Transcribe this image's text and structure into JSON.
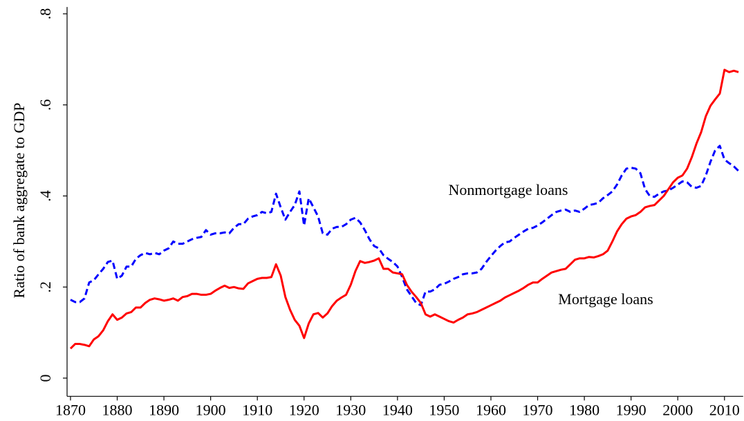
{
  "chart_data": {
    "type": "line",
    "ylabel": "Ratio of bank aggregate to GDP",
    "x": [
      1870,
      1871,
      1872,
      1873,
      1874,
      1875,
      1876,
      1877,
      1878,
      1879,
      1880,
      1881,
      1882,
      1883,
      1884,
      1885,
      1886,
      1887,
      1888,
      1889,
      1890,
      1891,
      1892,
      1893,
      1894,
      1895,
      1896,
      1897,
      1898,
      1899,
      1900,
      1901,
      1902,
      1903,
      1904,
      1905,
      1906,
      1907,
      1908,
      1909,
      1910,
      1911,
      1912,
      1913,
      1914,
      1915,
      1916,
      1917,
      1918,
      1919,
      1920,
      1921,
      1922,
      1923,
      1924,
      1925,
      1926,
      1927,
      1928,
      1929,
      1930,
      1931,
      1932,
      1933,
      1934,
      1935,
      1936,
      1937,
      1938,
      1939,
      1940,
      1941,
      1942,
      1943,
      1944,
      1945,
      1946,
      1947,
      1948,
      1949,
      1950,
      1951,
      1952,
      1953,
      1954,
      1955,
      1956,
      1957,
      1958,
      1959,
      1960,
      1961,
      1962,
      1963,
      1964,
      1965,
      1966,
      1967,
      1968,
      1969,
      1970,
      1971,
      1972,
      1973,
      1974,
      1975,
      1976,
      1977,
      1978,
      1979,
      1980,
      1981,
      1982,
      1983,
      1984,
      1985,
      1986,
      1987,
      1988,
      1989,
      1990,
      1991,
      1992,
      1993,
      1994,
      1995,
      1996,
      1997,
      1998,
      1999,
      2000,
      2001,
      2002,
      2003,
      2004,
      2005,
      2006,
      2007,
      2008,
      2009,
      2010,
      2011,
      2012,
      2013
    ],
    "series": [
      {
        "name": "Nonmortgage loans",
        "color": "#0000ff",
        "dash": true,
        "values": [
          0.172,
          0.167,
          0.167,
          0.175,
          0.21,
          0.215,
          0.228,
          0.24,
          0.255,
          0.258,
          0.218,
          0.225,
          0.245,
          0.245,
          0.262,
          0.27,
          0.275,
          0.272,
          0.275,
          0.272,
          0.28,
          0.285,
          0.3,
          0.295,
          0.295,
          0.3,
          0.305,
          0.308,
          0.31,
          0.325,
          0.315,
          0.318,
          0.318,
          0.32,
          0.318,
          0.33,
          0.338,
          0.338,
          0.35,
          0.355,
          0.358,
          0.365,
          0.362,
          0.365,
          0.405,
          0.375,
          0.348,
          0.365,
          0.38,
          0.41,
          0.335,
          0.395,
          0.375,
          0.355,
          0.318,
          0.315,
          0.328,
          0.332,
          0.332,
          0.338,
          0.348,
          0.352,
          0.342,
          0.325,
          0.305,
          0.29,
          0.285,
          0.27,
          0.262,
          0.255,
          0.245,
          0.222,
          0.195,
          0.18,
          0.165,
          0.16,
          0.19,
          0.19,
          0.195,
          0.205,
          0.207,
          0.212,
          0.218,
          0.222,
          0.228,
          0.23,
          0.23,
          0.232,
          0.24,
          0.255,
          0.268,
          0.28,
          0.29,
          0.298,
          0.3,
          0.308,
          0.315,
          0.322,
          0.328,
          0.33,
          0.335,
          0.342,
          0.35,
          0.358,
          0.365,
          0.368,
          0.37,
          0.365,
          0.368,
          0.365,
          0.372,
          0.38,
          0.382,
          0.385,
          0.395,
          0.402,
          0.41,
          0.425,
          0.445,
          0.46,
          0.462,
          0.46,
          0.45,
          0.415,
          0.4,
          0.398,
          0.405,
          0.41,
          0.412,
          0.418,
          0.425,
          0.432,
          0.43,
          0.42,
          0.418,
          0.422,
          0.445,
          0.475,
          0.5,
          0.51,
          0.48,
          0.472,
          0.465,
          0.455
        ]
      },
      {
        "name": "Mortgage loans",
        "color": "#ff0000",
        "dash": false,
        "values": [
          0.065,
          0.075,
          0.075,
          0.073,
          0.07,
          0.085,
          0.092,
          0.105,
          0.125,
          0.14,
          0.128,
          0.133,
          0.142,
          0.145,
          0.155,
          0.155,
          0.165,
          0.172,
          0.175,
          0.173,
          0.17,
          0.172,
          0.175,
          0.17,
          0.178,
          0.18,
          0.185,
          0.185,
          0.183,
          0.183,
          0.185,
          0.192,
          0.198,
          0.203,
          0.198,
          0.2,
          0.197,
          0.196,
          0.208,
          0.213,
          0.218,
          0.22,
          0.22,
          0.222,
          0.25,
          0.225,
          0.178,
          0.15,
          0.128,
          0.115,
          0.088,
          0.12,
          0.14,
          0.143,
          0.133,
          0.142,
          0.158,
          0.17,
          0.177,
          0.183,
          0.205,
          0.235,
          0.257,
          0.253,
          0.255,
          0.258,
          0.263,
          0.24,
          0.24,
          0.232,
          0.23,
          0.228,
          0.205,
          0.19,
          0.178,
          0.165,
          0.14,
          0.135,
          0.14,
          0.135,
          0.13,
          0.125,
          0.122,
          0.128,
          0.133,
          0.14,
          0.142,
          0.145,
          0.15,
          0.155,
          0.16,
          0.165,
          0.17,
          0.177,
          0.182,
          0.187,
          0.192,
          0.198,
          0.205,
          0.21,
          0.21,
          0.218,
          0.225,
          0.232,
          0.235,
          0.238,
          0.24,
          0.25,
          0.26,
          0.263,
          0.263,
          0.266,
          0.265,
          0.268,
          0.272,
          0.28,
          0.3,
          0.322,
          0.338,
          0.35,
          0.355,
          0.358,
          0.365,
          0.375,
          0.378,
          0.38,
          0.39,
          0.4,
          0.415,
          0.43,
          0.44,
          0.445,
          0.46,
          0.485,
          0.515,
          0.54,
          0.575,
          0.598,
          0.612,
          0.625,
          0.677,
          0.672,
          0.675,
          0.672
        ]
      }
    ],
    "xlim": [
      1869,
      2014
    ],
    "ylim": [
      -0.04,
      0.815
    ],
    "xticks": [
      1870,
      1880,
      1890,
      1900,
      1910,
      1920,
      1930,
      1940,
      1950,
      1960,
      1970,
      1980,
      1990,
      2000,
      2010
    ],
    "yticks": [
      0,
      {
        "value": 0.2,
        "label": ".2"
      },
      {
        "value": 0.4,
        "label": ".4"
      },
      {
        "value": 0.6,
        "label": ".6"
      },
      {
        "value": 0.8,
        "label": ".8"
      }
    ]
  }
}
